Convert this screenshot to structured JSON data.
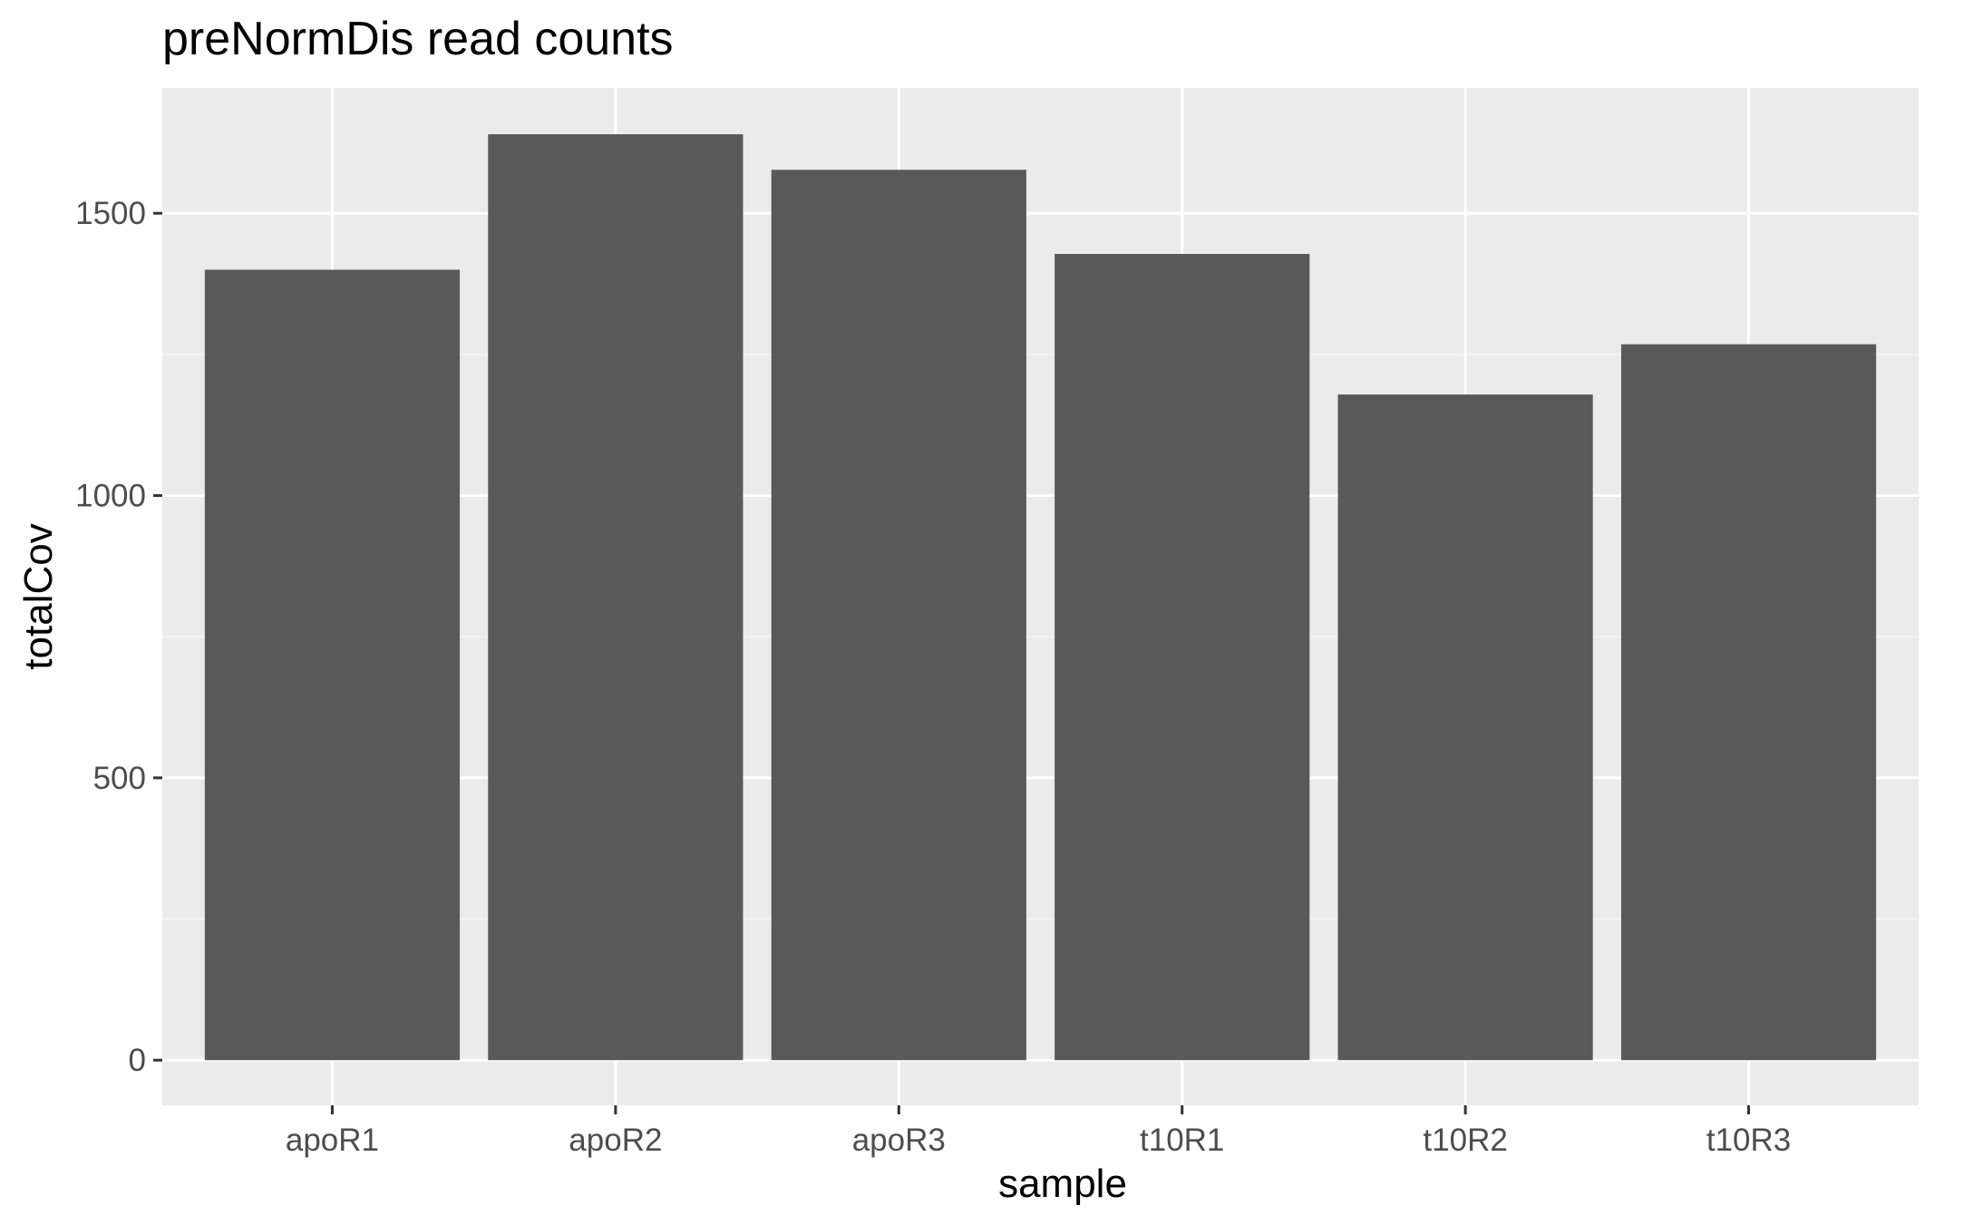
{
  "colors": {
    "panel_background": "#ebebeb",
    "grid_major": "#ffffff",
    "grid_minor": "#f5f5f5",
    "bar_fill": "#595959",
    "tick_color": "#333333",
    "tick_label_color": "#4d4d4d"
  },
  "chart_data": {
    "type": "bar",
    "title": "preNormDis read counts",
    "xlabel": "sample",
    "ylabel": "totalCov",
    "categories": [
      "apoR1",
      "apoR2",
      "apoR3",
      "t10R1",
      "t10R2",
      "t10R3"
    ],
    "values": [
      1400,
      1640,
      1577,
      1428,
      1179,
      1268
    ],
    "ylim": [
      -80,
      1722
    ],
    "y_ticks": [
      0,
      500,
      1000,
      1500
    ],
    "y_tick_labels": [
      "0",
      "500",
      "1000",
      "1500"
    ],
    "grid": true,
    "legend": "none"
  }
}
